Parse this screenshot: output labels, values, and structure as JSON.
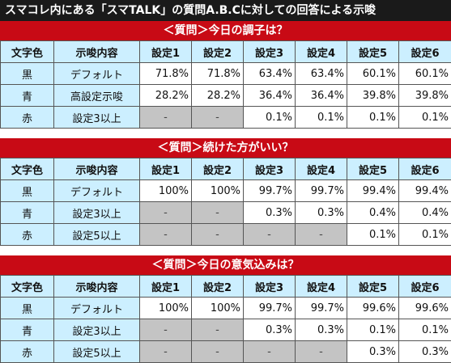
{
  "page_title": "スマコレ内にある「スマTALK」の質問A.B.Cに対しての回答による示唆",
  "columns": [
    "文字色",
    "示唆内容",
    "設定1",
    "設定2",
    "設定3",
    "設定4",
    "設定5",
    "設定6"
  ],
  "sections": [
    {
      "header": "＜質問＞今日の調子は？",
      "rows": [
        {
          "color": "黒",
          "hint": "デフォルト",
          "values": [
            "71.8%",
            "71.8%",
            "63.4%",
            "63.4%",
            "60.1%",
            "60.1%"
          ]
        },
        {
          "color": "青",
          "hint": "高設定示唆",
          "values": [
            "28.2%",
            "28.2%",
            "36.4%",
            "36.4%",
            "39.8%",
            "39.8%"
          ]
        },
        {
          "color": "赤",
          "hint": "設定3以上",
          "values": [
            "-",
            "-",
            "0.1%",
            "0.1%",
            "0.1%",
            "0.1%"
          ]
        }
      ]
    },
    {
      "header": "＜質問＞続けた方がいい？",
      "rows": [
        {
          "color": "黒",
          "hint": "デフォルト",
          "values": [
            "100%",
            "100%",
            "99.7%",
            "99.7%",
            "99.4%",
            "99.4%"
          ]
        },
        {
          "color": "青",
          "hint": "設定3以上",
          "values": [
            "-",
            "-",
            "0.3%",
            "0.3%",
            "0.4%",
            "0.4%"
          ]
        },
        {
          "color": "赤",
          "hint": "設定5以上",
          "values": [
            "-",
            "-",
            "-",
            "-",
            "0.1%",
            "0.1%"
          ]
        }
      ]
    },
    {
      "header": "＜質問＞今日の意気込みは？",
      "rows": [
        {
          "color": "黒",
          "hint": "デフォルト",
          "values": [
            "100%",
            "100%",
            "99.7%",
            "99.7%",
            "99.6%",
            "99.6%"
          ]
        },
        {
          "color": "青",
          "hint": "設定3以上",
          "values": [
            "-",
            "-",
            "0.3%",
            "0.3%",
            "0.1%",
            "0.1%"
          ]
        },
        {
          "color": "赤",
          "hint": "設定5以上",
          "values": [
            "-",
            "-",
            "-",
            "-",
            "0.3%",
            "0.3%"
          ]
        }
      ]
    }
  ]
}
